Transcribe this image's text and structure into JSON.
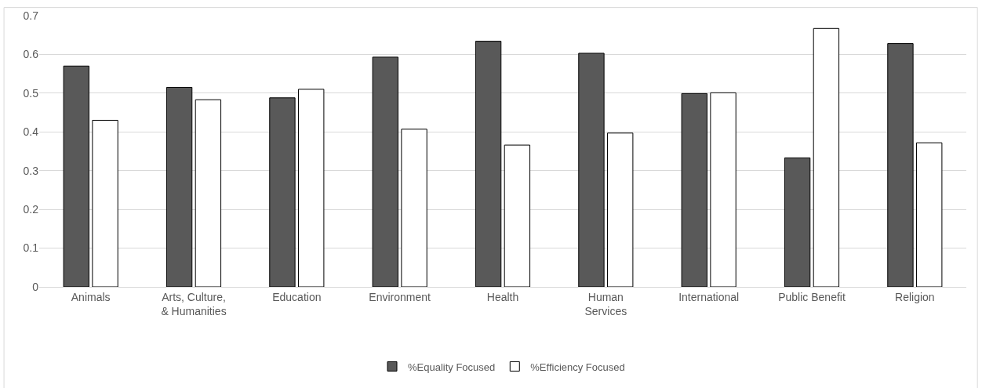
{
  "chart_data": {
    "type": "bar",
    "categories": [
      "Animals",
      "Arts, Culture,\n& Humanities",
      "Education",
      "Environment",
      "Health",
      "Human\nServices",
      "International",
      "Public Benefit",
      "Religion"
    ],
    "series": [
      {
        "name": "%Equality Focused",
        "color": "#595959",
        "values": [
          0.57,
          0.515,
          0.488,
          0.593,
          0.634,
          0.603,
          0.499,
          0.333,
          0.628
        ]
      },
      {
        "name": "%Efficiency Focused",
        "color": "#ffffff",
        "values": [
          0.43,
          0.483,
          0.51,
          0.407,
          0.366,
          0.397,
          0.501,
          0.667,
          0.372
        ]
      }
    ],
    "ylim": [
      0,
      0.7
    ],
    "yticks": [
      0,
      0.1,
      0.2,
      0.3,
      0.4,
      0.5,
      0.6,
      0.7
    ],
    "grid": "y",
    "legend": "bottom"
  }
}
